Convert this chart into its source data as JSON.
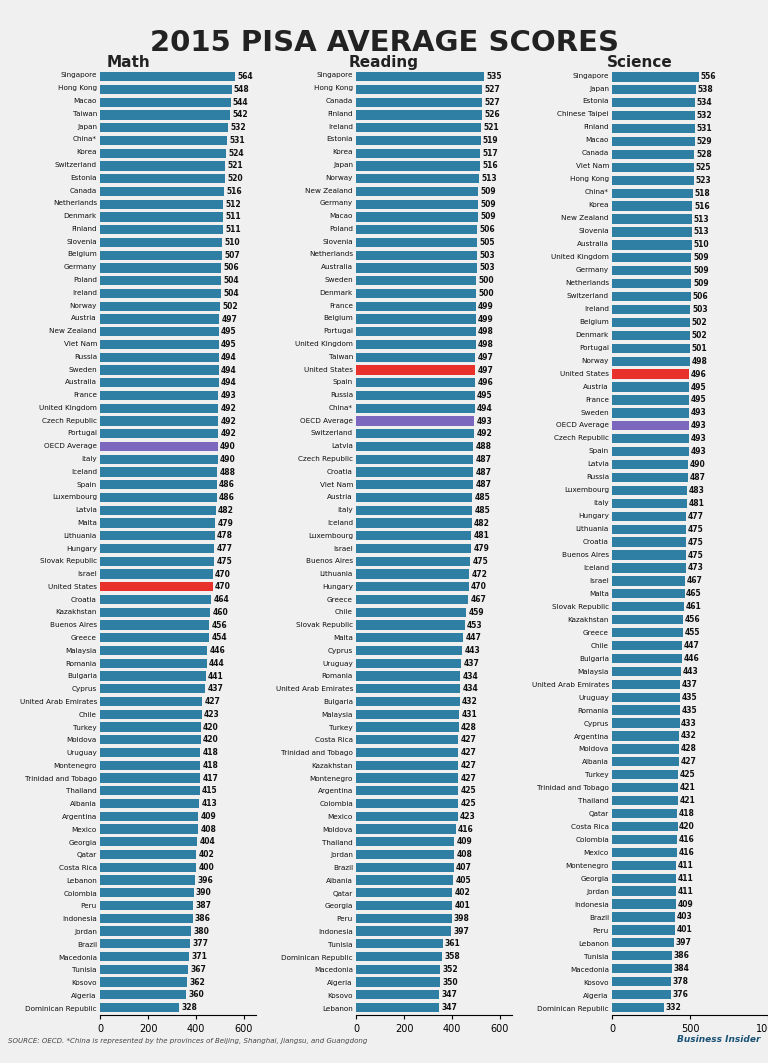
{
  "title": "2015 PISA AVERAGE SCORES",
  "math": {
    "label": "Math",
    "countries": [
      "Singapore",
      "Hong Kong",
      "Macao",
      "Taiwan",
      "Japan",
      "China*",
      "Korea",
      "Switzerland",
      "Estonia",
      "Canada",
      "Netherlands",
      "Denmark",
      "Finland",
      "Slovenia",
      "Belgium",
      "Germany",
      "Poland",
      "Ireland",
      "Norway",
      "Austria",
      "New Zealand",
      "Viet Nam",
      "Russia",
      "Sweden",
      "Australia",
      "France",
      "United Kingdom",
      "Czech Republic",
      "Portugal",
      "OECD Average",
      "Italy",
      "Iceland",
      "Spain",
      "Luxembourg",
      "Latvia",
      "Malta",
      "Lithuania",
      "Hungary",
      "Slovak Republic",
      "Israel",
      "United States",
      "Croatia",
      "Kazakhstan",
      "Buenos Aires",
      "Greece",
      "Malaysia",
      "Romania",
      "Bulgaria",
      "Cyprus",
      "United Arab Emirates",
      "Chile",
      "Turkey",
      "Moldova",
      "Uruguay",
      "Montenegro",
      "Trinidad and Tobago",
      "Thailand",
      "Albania",
      "Argentina",
      "Mexico",
      "Georgia",
      "Qatar",
      "Costa Rica",
      "Lebanon",
      "Colombia",
      "Peru",
      "Indonesia",
      "Jordan",
      "Brazil",
      "Macedonia",
      "Tunisia",
      "Kosovo",
      "Algeria",
      "Dominican Republic"
    ],
    "values": [
      564,
      548,
      544,
      542,
      532,
      531,
      524,
      521,
      520,
      516,
      512,
      511,
      511,
      510,
      507,
      506,
      504,
      504,
      502,
      497,
      495,
      495,
      494,
      494,
      494,
      493,
      492,
      492,
      492,
      490,
      490,
      488,
      486,
      486,
      482,
      479,
      478,
      477,
      475,
      470,
      470,
      464,
      460,
      456,
      454,
      446,
      444,
      441,
      437,
      427,
      423,
      420,
      420,
      418,
      418,
      417,
      415,
      413,
      409,
      408,
      404,
      402,
      400,
      396,
      390,
      387,
      386,
      380,
      377,
      371,
      367,
      362,
      360,
      328
    ],
    "highlight_red": [
      "United States"
    ],
    "highlight_purple": [
      "OECD Average"
    ]
  },
  "reading": {
    "label": "Reading",
    "countries": [
      "Singapore",
      "Hong Kong",
      "Canada",
      "Finland",
      "Ireland",
      "Estonia",
      "Korea",
      "Japan",
      "Norway",
      "New Zealand",
      "Germany",
      "Macao",
      "Poland",
      "Slovenia",
      "Netherlands",
      "Australia",
      "Sweden",
      "Denmark",
      "France",
      "Belgium",
      "Portugal",
      "United Kingdom",
      "Taiwan",
      "United States",
      "Spain",
      "Russia",
      "China*",
      "OECD Average",
      "Switzerland",
      "Latvia",
      "Czech Republic",
      "Croatia",
      "Viet Nam",
      "Austria",
      "Italy",
      "Iceland",
      "Luxembourg",
      "Israel",
      "Buenos Aires",
      "Lithuania",
      "Hungary",
      "Greece",
      "Chile",
      "Slovak Republic",
      "Malta",
      "Cyprus",
      "Uruguay",
      "Romania",
      "United Arab Emirates",
      "Bulgaria",
      "Malaysia",
      "Turkey",
      "Costa Rica",
      "Trinidad and Tobago",
      "Kazakhstan",
      "Montenegro",
      "Argentina",
      "Colombia",
      "Mexico",
      "Moldova",
      "Thailand",
      "Jordan",
      "Brazil",
      "Albania",
      "Qatar",
      "Georgia",
      "Peru",
      "Indonesia",
      "Tunisia",
      "Dominican Republic",
      "Macedonia",
      "Algeria",
      "Kosovo",
      "Lebanon"
    ],
    "values": [
      535,
      527,
      527,
      526,
      521,
      519,
      517,
      516,
      513,
      509,
      509,
      509,
      506,
      505,
      503,
      503,
      500,
      500,
      499,
      499,
      498,
      498,
      497,
      497,
      496,
      495,
      494,
      493,
      492,
      488,
      487,
      487,
      487,
      485,
      485,
      482,
      481,
      479,
      475,
      472,
      470,
      467,
      459,
      453,
      447,
      443,
      437,
      434,
      434,
      432,
      431,
      428,
      427,
      427,
      427,
      427,
      425,
      425,
      423,
      416,
      409,
      408,
      407,
      405,
      402,
      401,
      398,
      397,
      361,
      358,
      352,
      350,
      347,
      347
    ],
    "highlight_red": [
      "United States"
    ],
    "highlight_purple": [
      "OECD Average"
    ]
  },
  "science": {
    "label": "Science",
    "countries": [
      "Singapore",
      "Japan",
      "Estonia",
      "Chinese Taipei",
      "Finland",
      "Macao",
      "Canada",
      "Viet Nam",
      "Hong Kong",
      "China*",
      "Korea",
      "New Zealand",
      "Slovenia",
      "Australia",
      "United Kingdom",
      "Germany",
      "Netherlands",
      "Switzerland",
      "Ireland",
      "Belgium",
      "Denmark",
      "Portugal",
      "Norway",
      "United States",
      "Austria",
      "France",
      "Sweden",
      "OECD Average",
      "Czech Republic",
      "Spain",
      "Latvia",
      "Russia",
      "Luxembourg",
      "Italy",
      "Hungary",
      "Lithuania",
      "Croatia",
      "Buenos Aires",
      "Iceland",
      "Israel",
      "Malta",
      "Slovak Republic",
      "Kazakhstan",
      "Greece",
      "Chile",
      "Bulgaria",
      "Malaysia",
      "United Arab Emirates",
      "Uruguay",
      "Romania",
      "Cyprus",
      "Argentina",
      "Moldova",
      "Albania",
      "Turkey",
      "Trinidad and Tobago",
      "Thailand",
      "Qatar",
      "Costa Rica",
      "Colombia",
      "Mexico",
      "Montenegro",
      "Georgia",
      "Jordan",
      "Indonesia",
      "Brazil",
      "Peru",
      "Lebanon",
      "Tunisia",
      "Macedonia",
      "Kosovo",
      "Algeria",
      "Dominican Republic"
    ],
    "values": [
      556,
      538,
      534,
      532,
      531,
      529,
      528,
      525,
      523,
      518,
      516,
      513,
      513,
      510,
      509,
      509,
      509,
      506,
      503,
      502,
      502,
      501,
      498,
      496,
      495,
      495,
      493,
      493,
      493,
      493,
      490,
      487,
      483,
      481,
      477,
      475,
      475,
      475,
      473,
      467,
      465,
      461,
      456,
      455,
      447,
      446,
      443,
      437,
      435,
      435,
      433,
      432,
      428,
      427,
      425,
      421,
      421,
      418,
      420,
      416,
      416,
      411,
      411,
      411,
      409,
      403,
      401,
      397,
      386,
      384,
      378,
      376,
      332
    ],
    "highlight_red": [
      "United States"
    ],
    "highlight_purple": [
      "OECD Average"
    ]
  },
  "bar_color": "#2E7FA3",
  "red_color": "#E8312A",
  "purple_color": "#7B68BE",
  "bg_color": "#F0F0F0",
  "text_color": "#222222",
  "source_text": "SOURCE: OECD. *China is represented by the provinces of Beijing, Shanghai, Jiangsu, and Guangdong",
  "bi_text": "Business Insider"
}
